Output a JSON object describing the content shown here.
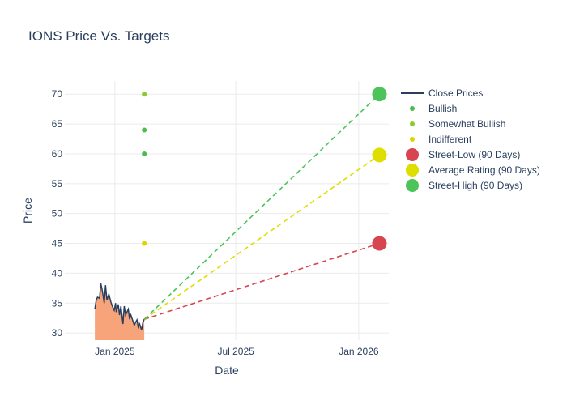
{
  "chart_data": {
    "type": "line",
    "title": "IONS Price Vs. Targets",
    "xlabel": "Date",
    "ylabel": "Price",
    "x_range": [
      "2024-10-18",
      "2026-02-15"
    ],
    "ylim": [
      28.8,
      72.2
    ],
    "x_ticks": [
      {
        "date": "2025-01-01",
        "label": "Jan 2025"
      },
      {
        "date": "2025-07-01",
        "label": "Jul 2025"
      },
      {
        "date": "2026-01-01",
        "label": "Jan 2026"
      }
    ],
    "y_ticks": [
      30,
      35,
      40,
      45,
      50,
      55,
      60,
      65,
      70
    ],
    "grid": true,
    "legend_position": "right",
    "close_prices": {
      "name": "Close Prices",
      "color": "#2a3f5f",
      "fill_color": "#f8a47a",
      "x": [
        "2024-12-02",
        "2024-12-04",
        "2024-12-06",
        "2024-12-09",
        "2024-12-11",
        "2024-12-13",
        "2024-12-16",
        "2024-12-18",
        "2024-12-20",
        "2024-12-23",
        "2024-12-26",
        "2024-12-28",
        "2024-12-31",
        "2025-01-02",
        "2025-01-03",
        "2025-01-06",
        "2025-01-08",
        "2025-01-10",
        "2025-01-13",
        "2025-01-15",
        "2025-01-17",
        "2025-01-21",
        "2025-01-23",
        "2025-01-25",
        "2025-01-28",
        "2025-01-30",
        "2025-02-01",
        "2025-02-03",
        "2025-02-05",
        "2025-02-07",
        "2025-02-10",
        "2025-02-12",
        "2025-02-14"
      ],
      "y": [
        34.0,
        35.5,
        36.0,
        35.8,
        38.3,
        37.2,
        35.0,
        38.0,
        35.5,
        36.5,
        35.2,
        34.5,
        33.8,
        35.0,
        33.5,
        34.8,
        33.0,
        34.5,
        31.5,
        34.5,
        33.0,
        34.0,
        32.3,
        33.0,
        32.0,
        31.3,
        31.8,
        32.2,
        31.0,
        31.5,
        30.5,
        31.8,
        32.3
      ]
    },
    "series": [
      {
        "name": "Bullish",
        "color": "#4cbb4c",
        "points": [
          {
            "x": "2025-02-14",
            "y": 64
          },
          {
            "x": "2025-02-14",
            "y": 60
          }
        ]
      },
      {
        "name": "Somewhat Bullish",
        "color": "#8ccc2a",
        "points": [
          {
            "x": "2025-02-14",
            "y": 70
          }
        ]
      },
      {
        "name": "Indifferent",
        "color": "#e0d400",
        "points": [
          {
            "x": "2025-02-14",
            "y": 45
          }
        ]
      }
    ],
    "targets": [
      {
        "name": "Street-Low (90 Days)",
        "color": "#d64550",
        "value": 45
      },
      {
        "name": "Average Rating (90 Days)",
        "color": "#dede00",
        "value": 59.8
      },
      {
        "name": "Street-High (90 Days)",
        "color": "#4cc45a",
        "value": 70
      }
    ],
    "target_date": "2026-02-01",
    "projection_start": {
      "x": "2025-02-14",
      "y": 32.3
    }
  }
}
